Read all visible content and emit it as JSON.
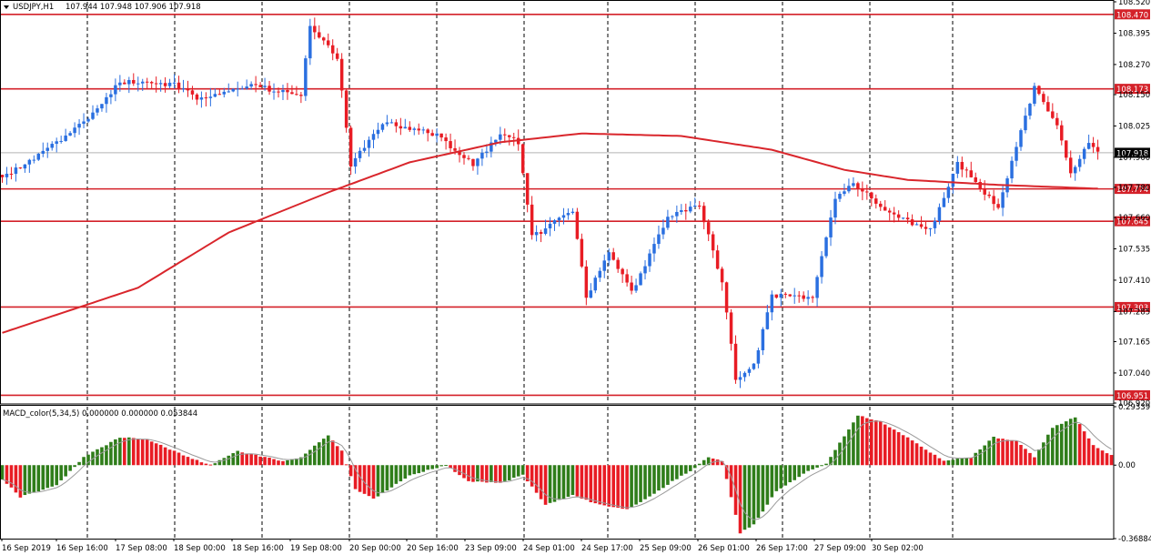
{
  "header": {
    "symbol_label": "USDJPY,H1",
    "quote_values": "107.944 107.948 107.906 107.918",
    "indicator_label": "MACD_color(5,34,5) 0.000000 0.000000 0.053844"
  },
  "colors": {
    "bull": "#2a6fe0",
    "bear": "#e81c24",
    "ma": "#d9262c",
    "hline": "#d42129",
    "macd_up": "#2f7d1a",
    "macd_down": "#e81c24",
    "signal": "#9a9a9a",
    "grid": "#000000",
    "last_price_box": "#000000"
  },
  "chart_data": [
    {
      "type": "candlestick",
      "name": "price",
      "title": "",
      "ylim": [
        106.92,
        108.52
      ],
      "y_ticks": [
        108.52,
        108.395,
        108.27,
        108.15,
        108.025,
        107.9,
        107.78,
        107.66,
        107.535,
        107.41,
        107.285,
        107.165,
        107.04,
        106.92
      ],
      "x_labels": [
        "16 Sep 2019",
        "16 Sep 16:00",
        "17 Sep 08:00",
        "18 Sep 00:00",
        "18 Sep 16:00",
        "19 Sep 08:00",
        "20 Sep 00:00",
        "20 Sep 16:00",
        "23 Sep 09:00",
        "24 Sep 01:00",
        "24 Sep 17:00",
        "25 Sep 09:00",
        "26 Sep 01:00",
        "26 Sep 17:00",
        "27 Sep 09:00",
        "30 Sep 02:00"
      ],
      "horizontal_levels": [
        "108.470",
        "108.173",
        "107.774",
        "107.645",
        "107.303",
        "106.951"
      ],
      "last_price": "107.918",
      "grid": "vertical-dashed",
      "key_points": [
        {
          "bar": 0,
          "close": 107.82
        },
        {
          "bar": 10,
          "close": 107.93
        },
        {
          "bar": 20,
          "close": 108.07
        },
        {
          "bar": 26,
          "close": 108.2
        },
        {
          "bar": 38,
          "close": 108.19
        },
        {
          "bar": 44,
          "close": 108.13
        },
        {
          "bar": 55,
          "close": 108.19
        },
        {
          "bar": 66,
          "close": 108.14
        },
        {
          "bar": 68,
          "close": 108.43
        },
        {
          "bar": 74,
          "close": 108.3
        },
        {
          "bar": 77,
          "close": 107.87
        },
        {
          "bar": 84,
          "close": 108.04
        },
        {
          "bar": 96,
          "close": 107.99
        },
        {
          "bar": 104,
          "close": 107.87
        },
        {
          "bar": 110,
          "close": 107.99
        },
        {
          "bar": 114,
          "close": 107.96
        },
        {
          "bar": 117,
          "close": 107.58
        },
        {
          "bar": 126,
          "close": 107.69
        },
        {
          "bar": 129,
          "close": 107.34
        },
        {
          "bar": 134,
          "close": 107.52
        },
        {
          "bar": 139,
          "close": 107.36
        },
        {
          "bar": 147,
          "close": 107.66
        },
        {
          "bar": 154,
          "close": 107.71
        },
        {
          "bar": 159,
          "close": 107.4
        },
        {
          "bar": 162,
          "close": 107.02
        },
        {
          "bar": 166,
          "close": 107.07
        },
        {
          "bar": 170,
          "close": 107.35
        },
        {
          "bar": 179,
          "close": 107.34
        },
        {
          "bar": 184,
          "close": 107.74
        },
        {
          "bar": 188,
          "close": 107.8
        },
        {
          "bar": 196,
          "close": 107.67
        },
        {
          "bar": 205,
          "close": 107.61
        },
        {
          "bar": 211,
          "close": 107.88
        },
        {
          "bar": 220,
          "close": 107.7
        },
        {
          "bar": 228,
          "close": 108.18
        },
        {
          "bar": 233,
          "close": 108.03
        },
        {
          "bar": 236,
          "close": 107.83
        },
        {
          "bar": 240,
          "close": 107.96
        },
        {
          "bar": 242,
          "close": 107.918
        }
      ],
      "moving_average": [
        {
          "bar": 0,
          "value": 107.2
        },
        {
          "bar": 30,
          "value": 107.38
        },
        {
          "bar": 50,
          "value": 107.6
        },
        {
          "bar": 72,
          "value": 107.76
        },
        {
          "bar": 90,
          "value": 107.88
        },
        {
          "bar": 110,
          "value": 107.96
        },
        {
          "bar": 128,
          "value": 107.995
        },
        {
          "bar": 150,
          "value": 107.985
        },
        {
          "bar": 170,
          "value": 107.93
        },
        {
          "bar": 186,
          "value": 107.85
        },
        {
          "bar": 200,
          "value": 107.81
        },
        {
          "bar": 220,
          "value": 107.79
        },
        {
          "bar": 242,
          "value": 107.775
        }
      ]
    },
    {
      "type": "histogram",
      "name": "MACD_color",
      "title": "",
      "ylim": [
        -0.36884,
        0.29339
      ],
      "y_ticks": [
        "0.29339",
        "0.00",
        "-0.36884"
      ],
      "key_points": [
        {
          "bar": 0,
          "value": -0.07
        },
        {
          "bar": 4,
          "value": -0.16
        },
        {
          "bar": 12,
          "value": -0.1
        },
        {
          "bar": 18,
          "value": 0.04
        },
        {
          "bar": 26,
          "value": 0.14
        },
        {
          "bar": 32,
          "value": 0.13
        },
        {
          "bar": 40,
          "value": 0.05
        },
        {
          "bar": 46,
          "value": 0.0
        },
        {
          "bar": 52,
          "value": 0.07
        },
        {
          "bar": 62,
          "value": 0.02
        },
        {
          "bar": 66,
          "value": 0.04
        },
        {
          "bar": 72,
          "value": 0.15
        },
        {
          "bar": 75,
          "value": 0.07
        },
        {
          "bar": 78,
          "value": -0.12
        },
        {
          "bar": 82,
          "value": -0.17
        },
        {
          "bar": 90,
          "value": -0.05
        },
        {
          "bar": 98,
          "value": 0.0
        },
        {
          "bar": 103,
          "value": -0.08
        },
        {
          "bar": 110,
          "value": -0.09
        },
        {
          "bar": 115,
          "value": -0.05
        },
        {
          "bar": 120,
          "value": -0.2
        },
        {
          "bar": 126,
          "value": -0.15
        },
        {
          "bar": 132,
          "value": -0.2
        },
        {
          "bar": 138,
          "value": -0.22
        },
        {
          "bar": 143,
          "value": -0.16
        },
        {
          "bar": 148,
          "value": -0.08
        },
        {
          "bar": 152,
          "value": -0.03
        },
        {
          "bar": 156,
          "value": 0.04
        },
        {
          "bar": 159,
          "value": 0.02
        },
        {
          "bar": 163,
          "value": -0.34
        },
        {
          "bar": 166,
          "value": -0.3
        },
        {
          "bar": 171,
          "value": -0.13
        },
        {
          "bar": 178,
          "value": -0.03
        },
        {
          "bar": 182,
          "value": 0.01
        },
        {
          "bar": 189,
          "value": 0.25
        },
        {
          "bar": 194,
          "value": 0.22
        },
        {
          "bar": 202,
          "value": 0.11
        },
        {
          "bar": 208,
          "value": 0.02
        },
        {
          "bar": 214,
          "value": 0.04
        },
        {
          "bar": 219,
          "value": 0.14
        },
        {
          "bar": 224,
          "value": 0.12
        },
        {
          "bar": 228,
          "value": 0.04
        },
        {
          "bar": 232,
          "value": 0.19
        },
        {
          "bar": 237,
          "value": 0.24
        },
        {
          "bar": 241,
          "value": 0.1
        },
        {
          "bar": 245,
          "value": 0.05
        }
      ]
    }
  ]
}
